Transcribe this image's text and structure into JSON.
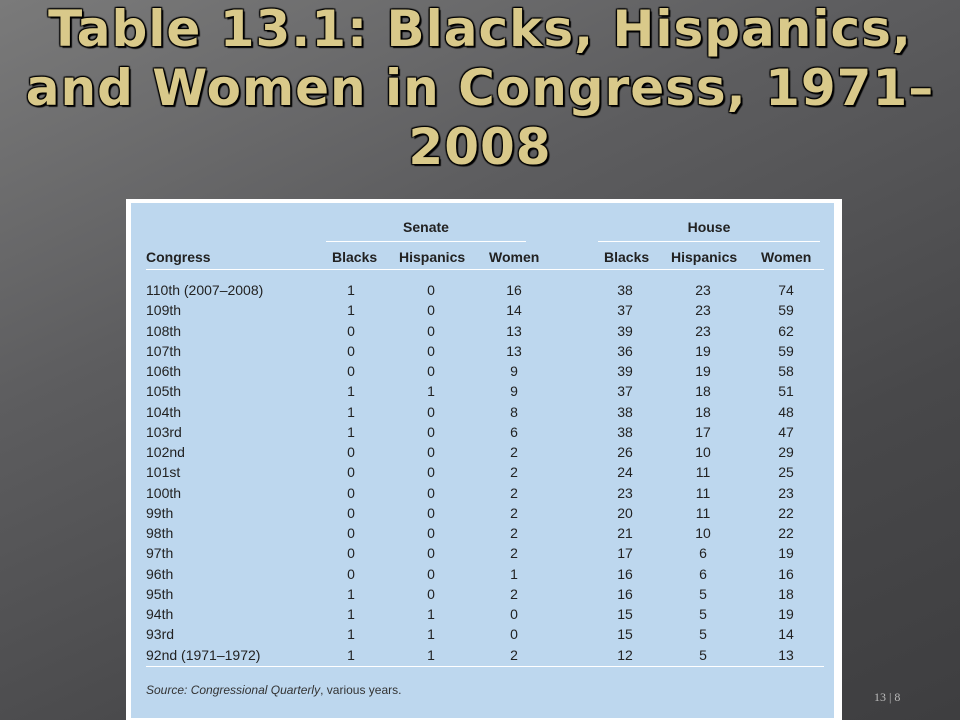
{
  "title": "Table 13.1: Blacks, Hispanics, and Women in Congress, 1971–2008",
  "table": {
    "groups": {
      "senate": "Senate",
      "house": "House"
    },
    "columns": {
      "congress": "Congress",
      "senate_blacks": "Blacks",
      "senate_hispanics": "Hispanics",
      "senate_women": "Women",
      "house_blacks": "Blacks",
      "house_hispanics": "Hispanics",
      "house_women": "Women"
    },
    "rows": [
      [
        "110th (2007–2008)",
        "1",
        "0",
        "16",
        "38",
        "23",
        "74"
      ],
      [
        "109th",
        "1",
        "0",
        "14",
        "37",
        "23",
        "59"
      ],
      [
        "108th",
        "0",
        "0",
        "13",
        "39",
        "23",
        "62"
      ],
      [
        "107th",
        "0",
        "0",
        "13",
        "36",
        "19",
        "59"
      ],
      [
        "106th",
        "0",
        "0",
        "9",
        "39",
        "19",
        "58"
      ],
      [
        "105th",
        "1",
        "1",
        "9",
        "37",
        "18",
        "51"
      ],
      [
        "104th",
        "1",
        "0",
        "8",
        "38",
        "18",
        "48"
      ],
      [
        "103rd",
        "1",
        "0",
        "6",
        "38",
        "17",
        "47"
      ],
      [
        "102nd",
        "0",
        "0",
        "2",
        "26",
        "10",
        "29"
      ],
      [
        "101st",
        "0",
        "0",
        "2",
        "24",
        "11",
        "25"
      ],
      [
        "100th",
        "0",
        "0",
        "2",
        "23",
        "11",
        "23"
      ],
      [
        "99th",
        "0",
        "0",
        "2",
        "20",
        "11",
        "22"
      ],
      [
        "98th",
        "0",
        "0",
        "2",
        "21",
        "10",
        "22"
      ],
      [
        "97th",
        "0",
        "0",
        "2",
        "17",
        "6",
        "19"
      ],
      [
        "96th",
        "0",
        "0",
        "1",
        "16",
        "6",
        "16"
      ],
      [
        "95th",
        "1",
        "0",
        "2",
        "16",
        "5",
        "18"
      ],
      [
        "94th",
        "1",
        "1",
        "0",
        "15",
        "5",
        "19"
      ],
      [
        "93rd",
        "1",
        "1",
        "0",
        "15",
        "5",
        "14"
      ],
      [
        "92nd (1971–1972)",
        "1",
        "1",
        "2",
        "12",
        "5",
        "13"
      ]
    ],
    "source_label": "Source:",
    "source_italic": "Congressional Quarterly",
    "source_rest": ", various years."
  },
  "slide_number": "13 | 8",
  "colors": {
    "title": "#d9c98a",
    "table_background": "#bdd7ee",
    "slide_background": "#55555a"
  }
}
